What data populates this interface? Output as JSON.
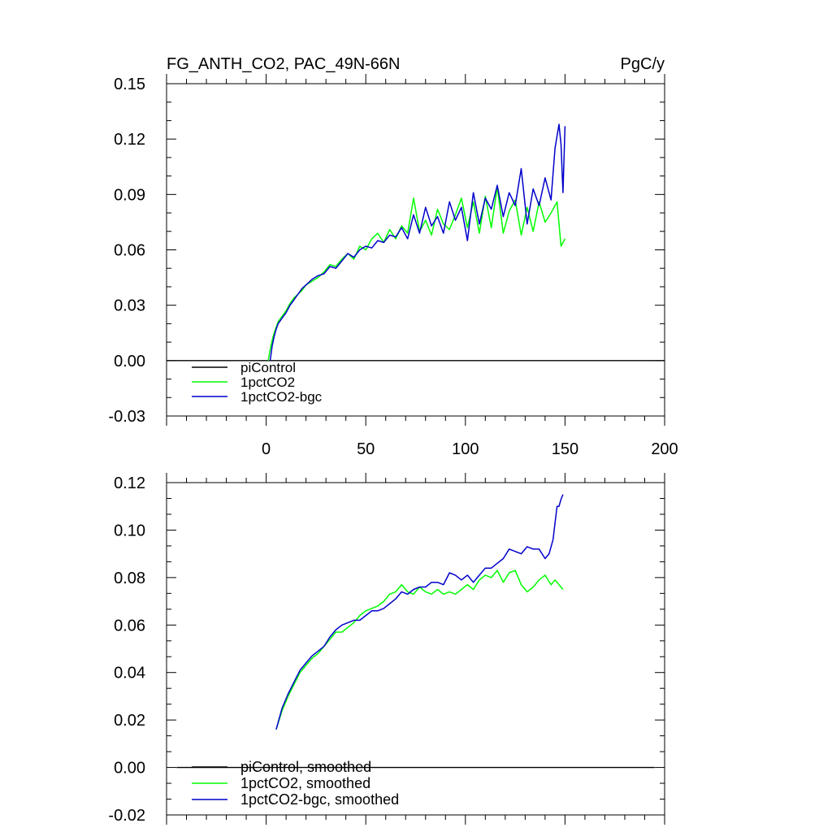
{
  "units_label": "PgC/y",
  "chart_data": [
    {
      "type": "line",
      "title": "FG_ANTH_CO2, PAC_49N-66N",
      "units": "PgC/y",
      "xlim": [
        -50,
        200
      ],
      "ylim": [
        -0.03,
        0.15
      ],
      "xticks": [
        0,
        50,
        100,
        150,
        200
      ],
      "xtick_labels": [
        "0",
        "50",
        "100",
        "150",
        "200"
      ],
      "yticks": [
        -0.03,
        0.0,
        0.03,
        0.06,
        0.09,
        0.12,
        0.15
      ],
      "ytick_labels": [
        "-0.03",
        "0.00",
        "0.03",
        "0.06",
        "0.09",
        "0.12",
        "0.15"
      ],
      "legend_position": "bottom-left",
      "series": [
        {
          "name": "piControl",
          "color": "#000000",
          "x": [
            -50,
            200
          ],
          "y": [
            0.0,
            0.0
          ]
        },
        {
          "name": "1pctCO2",
          "color": "#00ff00",
          "x": [
            1,
            2,
            3,
            4,
            5,
            6,
            8,
            10,
            12,
            14,
            16,
            18,
            20,
            23,
            26,
            29,
            32,
            35,
            38,
            41,
            44,
            47,
            50,
            53,
            56,
            59,
            62,
            65,
            68,
            71,
            74,
            77,
            80,
            83,
            86,
            89,
            92,
            95,
            98,
            101,
            104,
            107,
            110,
            113,
            116,
            119,
            122,
            125,
            128,
            131,
            134,
            137,
            140,
            143,
            146,
            148,
            150
          ],
          "y": [
            0.0,
            0.006,
            0.011,
            0.015,
            0.018,
            0.021,
            0.024,
            0.027,
            0.031,
            0.034,
            0.036,
            0.038,
            0.041,
            0.043,
            0.045,
            0.048,
            0.052,
            0.051,
            0.055,
            0.058,
            0.055,
            0.062,
            0.06,
            0.066,
            0.069,
            0.064,
            0.071,
            0.066,
            0.073,
            0.069,
            0.088,
            0.07,
            0.076,
            0.068,
            0.082,
            0.074,
            0.071,
            0.079,
            0.088,
            0.072,
            0.086,
            0.069,
            0.089,
            0.072,
            0.094,
            0.069,
            0.081,
            0.087,
            0.068,
            0.083,
            0.07,
            0.086,
            0.075,
            0.08,
            0.086,
            0.062,
            0.066
          ]
        },
        {
          "name": "1pctCO2-bgc",
          "color": "#0000cc",
          "x": [
            2,
            3,
            4,
            5,
            6,
            8,
            10,
            12,
            14,
            16,
            18,
            20,
            23,
            26,
            29,
            32,
            35,
            38,
            41,
            44,
            47,
            50,
            53,
            56,
            59,
            62,
            65,
            68,
            71,
            74,
            77,
            80,
            83,
            86,
            89,
            92,
            95,
            98,
            101,
            104,
            107,
            110,
            113,
            116,
            119,
            122,
            125,
            128,
            131,
            134,
            137,
            140,
            143,
            145,
            147,
            148,
            149,
            150
          ],
          "y": [
            0.0,
            0.008,
            0.013,
            0.017,
            0.02,
            0.023,
            0.026,
            0.03,
            0.033,
            0.036,
            0.039,
            0.041,
            0.044,
            0.046,
            0.047,
            0.051,
            0.05,
            0.054,
            0.058,
            0.056,
            0.06,
            0.062,
            0.061,
            0.065,
            0.064,
            0.068,
            0.067,
            0.072,
            0.066,
            0.079,
            0.069,
            0.083,
            0.073,
            0.078,
            0.069,
            0.086,
            0.076,
            0.083,
            0.065,
            0.091,
            0.074,
            0.088,
            0.082,
            0.095,
            0.078,
            0.091,
            0.084,
            0.104,
            0.074,
            0.093,
            0.084,
            0.099,
            0.087,
            0.115,
            0.128,
            0.117,
            0.091,
            0.127
          ]
        }
      ]
    },
    {
      "type": "line",
      "title": "",
      "units": "",
      "xlim": [
        -50,
        200
      ],
      "ylim": [
        -0.02,
        0.12
      ],
      "xticks": [
        0,
        50,
        100,
        150,
        200
      ],
      "xtick_labels": [],
      "yticks": [
        -0.02,
        0.0,
        0.02,
        0.04,
        0.06,
        0.08,
        0.1,
        0.12
      ],
      "ytick_labels": [
        "-0.02",
        "0.00",
        "0.02",
        "0.04",
        "0.06",
        "0.08",
        "0.10",
        "0.12"
      ],
      "legend_position": "bottom-left",
      "series": [
        {
          "name": "piControl, smoothed",
          "color": "#000000",
          "x": [
            -45,
            195
          ],
          "y": [
            0.0,
            0.0
          ]
        },
        {
          "name": "1pctCO2, smoothed",
          "color": "#00ff00",
          "x": [
            5,
            8,
            11,
            14,
            17,
            20,
            23,
            26,
            29,
            32,
            35,
            38,
            41,
            44,
            47,
            50,
            53,
            56,
            59,
            62,
            65,
            68,
            71,
            74,
            77,
            80,
            83,
            86,
            89,
            92,
            95,
            98,
            101,
            104,
            107,
            110,
            113,
            116,
            119,
            122,
            125,
            128,
            131,
            134,
            137,
            140,
            143,
            145,
            147,
            149
          ],
          "y": [
            0.016,
            0.024,
            0.03,
            0.035,
            0.04,
            0.043,
            0.046,
            0.048,
            0.051,
            0.054,
            0.057,
            0.057,
            0.059,
            0.061,
            0.064,
            0.066,
            0.067,
            0.068,
            0.07,
            0.073,
            0.074,
            0.077,
            0.074,
            0.073,
            0.076,
            0.074,
            0.073,
            0.075,
            0.073,
            0.074,
            0.073,
            0.075,
            0.077,
            0.075,
            0.079,
            0.081,
            0.08,
            0.083,
            0.078,
            0.082,
            0.083,
            0.077,
            0.074,
            0.076,
            0.079,
            0.081,
            0.077,
            0.079,
            0.077,
            0.075
          ]
        },
        {
          "name": "1pctCO2-bgc, smoothed",
          "color": "#0000cc",
          "x": [
            5,
            8,
            11,
            14,
            17,
            20,
            23,
            26,
            29,
            32,
            35,
            38,
            41,
            44,
            47,
            50,
            53,
            56,
            59,
            62,
            65,
            68,
            71,
            74,
            77,
            80,
            83,
            86,
            89,
            92,
            95,
            98,
            101,
            104,
            107,
            110,
            113,
            116,
            119,
            122,
            125,
            128,
            131,
            134,
            137,
            140,
            142,
            144,
            145,
            146,
            147,
            148,
            149
          ],
          "y": [
            0.016,
            0.025,
            0.031,
            0.036,
            0.041,
            0.044,
            0.047,
            0.049,
            0.051,
            0.055,
            0.058,
            0.06,
            0.061,
            0.062,
            0.062,
            0.064,
            0.066,
            0.066,
            0.067,
            0.069,
            0.071,
            0.074,
            0.073,
            0.075,
            0.076,
            0.076,
            0.078,
            0.078,
            0.077,
            0.082,
            0.081,
            0.079,
            0.081,
            0.078,
            0.081,
            0.084,
            0.084,
            0.086,
            0.088,
            0.092,
            0.091,
            0.09,
            0.093,
            0.092,
            0.092,
            0.088,
            0.09,
            0.096,
            0.103,
            0.11,
            0.11,
            0.113,
            0.115
          ]
        }
      ]
    }
  ]
}
